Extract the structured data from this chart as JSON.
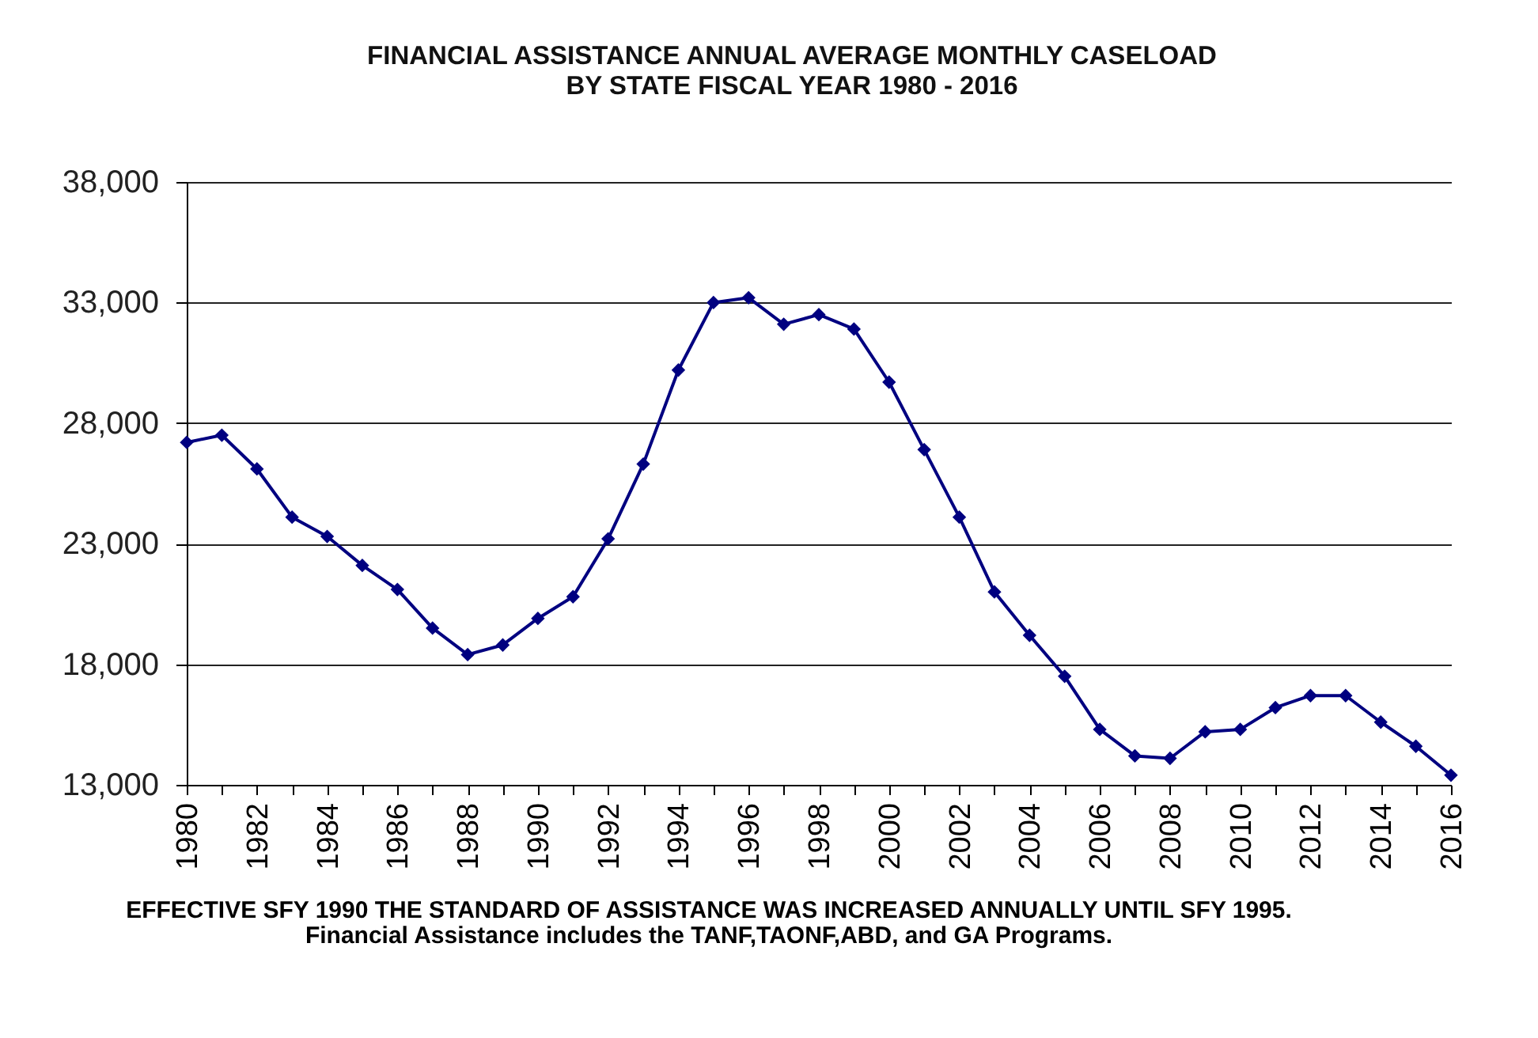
{
  "chart_data": {
    "type": "line",
    "title": "FINANCIAL ASSISTANCE ANNUAL AVERAGE MONTHLY CASELOAD\nBY STATE FISCAL YEAR 1980 - 2016",
    "x": [
      1980,
      1981,
      1982,
      1983,
      1984,
      1985,
      1986,
      1987,
      1988,
      1989,
      1990,
      1991,
      1992,
      1993,
      1994,
      1995,
      1996,
      1997,
      1998,
      1999,
      2000,
      2001,
      2002,
      2003,
      2004,
      2005,
      2006,
      2007,
      2008,
      2009,
      2010,
      2011,
      2012,
      2013,
      2014,
      2015,
      2016
    ],
    "series": [
      {
        "color": "#000080",
        "values": [
          27200,
          27500,
          26100,
          24100,
          23300,
          22100,
          21100,
          19500,
          18400,
          18800,
          19900,
          20800,
          23200,
          26300,
          30200,
          33000,
          33200,
          32100,
          32500,
          31900,
          29700,
          26900,
          24100,
          21000,
          19200,
          17500,
          15300,
          14200,
          14100,
          15200,
          15300,
          16200,
          16700,
          16700,
          15600,
          14600,
          13400
        ]
      }
    ],
    "xlim": [
      1980,
      2016
    ],
    "xticks": [
      1980,
      {
        "value": 1981,
        "label": null
      },
      1982,
      {
        "value": 1983,
        "label": null
      },
      1984,
      {
        "value": 1985,
        "label": null
      },
      1986,
      {
        "value": 1987,
        "label": null
      },
      1988,
      {
        "value": 1989,
        "label": null
      },
      1990,
      {
        "value": 1991,
        "label": null
      },
      1992,
      {
        "value": 1993,
        "label": null
      },
      1994,
      {
        "value": 1995,
        "label": null
      },
      1996,
      {
        "value": 1997,
        "label": null
      },
      1998,
      {
        "value": 1999,
        "label": null
      },
      2000,
      {
        "value": 2001,
        "label": null
      },
      2002,
      {
        "value": 2003,
        "label": null
      },
      2004,
      {
        "value": 2005,
        "label": null
      },
      2006,
      {
        "value": 2007,
        "label": null
      },
      2008,
      {
        "value": 2009,
        "label": null
      },
      2010,
      {
        "value": 2011,
        "label": null
      },
      2012,
      {
        "value": 2013,
        "label": null
      },
      2014,
      {
        "value": 2015,
        "label": null
      },
      2016
    ],
    "ylim": [
      13000,
      38000
    ],
    "yticks": [
      {
        "value": 13000,
        "label": "13,000"
      },
      {
        "value": 18000,
        "label": "18,000"
      },
      {
        "value": 23000,
        "label": "23,000"
      },
      {
        "value": 28000,
        "label": "28,000"
      },
      {
        "value": 33000,
        "label": "33,000"
      },
      {
        "value": 38000,
        "label": "38,000"
      }
    ],
    "grid": "y",
    "marker": "diamond",
    "line_style": "solid",
    "annotations": [
      "EFFECTIVE SFY 1990 THE STANDARD OF ASSISTANCE WAS INCREASED ANNUALLY UNTIL SFY 1995.",
      "Financial Assistance includes the TANF,TAONF,ABD, and GA Programs."
    ]
  }
}
